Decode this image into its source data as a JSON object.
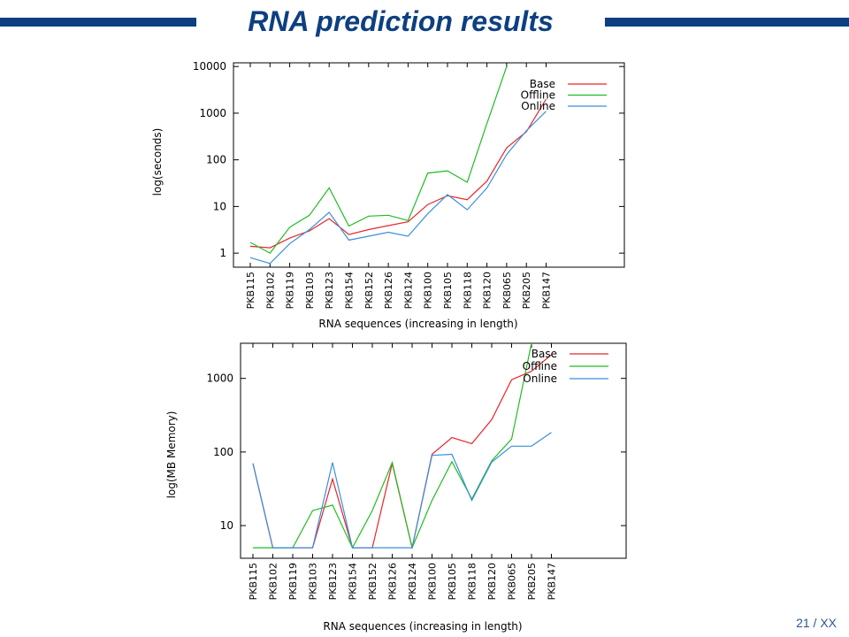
{
  "slide": {
    "title": "RNA prediction results",
    "page_number": "21 / XX",
    "rule_color": "#0d3f82",
    "title_color": "#0d3f82"
  },
  "chart_data": [
    {
      "type": "line",
      "scale": "log",
      "xlabel": "RNA sequences (increasing in length)",
      "ylabel": "log(seconds)",
      "ylim": [
        0.5,
        12000
      ],
      "yticks": [
        1,
        10,
        100,
        1000,
        10000
      ],
      "ytick_labels": [
        "1",
        "10",
        "100",
        "1000",
        "10000"
      ],
      "grid": false,
      "legend_position": "top-right",
      "categories": [
        "PKB115",
        "PKB102",
        "PKB119",
        "PKB103",
        "PKB123",
        "PKB154",
        "PKB152",
        "PKB126",
        "PKB124",
        "PKB100",
        "PKB105",
        "PKB118",
        "PKB120",
        "PKB065",
        "PKB205",
        "PKB147"
      ],
      "series": [
        {
          "name": "Base",
          "color": "#e8262a",
          "values": [
            1.4,
            1.3,
            2.1,
            3.0,
            5.5,
            2.5,
            3.2,
            3.9,
            4.7,
            11,
            17,
            14,
            35,
            180,
            400,
            2000
          ]
        },
        {
          "name": "Offline",
          "color": "#22bb22",
          "values": [
            1.7,
            1.0,
            3.6,
            6.5,
            25,
            3.8,
            6.2,
            6.5,
            5.0,
            52,
            58,
            33,
            600,
            10000,
            null,
            null
          ]
        },
        {
          "name": "Online",
          "color": "#3b8fdc",
          "values": [
            0.8,
            0.6,
            1.6,
            3.2,
            7.5,
            1.9,
            2.3,
            2.8,
            2.3,
            7.0,
            18,
            8.5,
            25,
            130,
            420,
            1100
          ]
        }
      ]
    },
    {
      "type": "line",
      "scale": "log",
      "xlabel": "RNA sequences (increasing in length)",
      "ylabel": "log(MB Memory)",
      "ylim": [
        3.6,
        3000
      ],
      "yticks": [
        10,
        100,
        1000
      ],
      "ytick_labels": [
        "10",
        "100",
        "1000"
      ],
      "grid": false,
      "legend_position": "top-right",
      "categories": [
        "PKB115",
        "PKB102",
        "PKB119",
        "PKB103",
        "PKB123",
        "PKB154",
        "PKB152",
        "PKB126",
        "PKB124",
        "PKB100",
        "PKB105",
        "PKB118",
        "PKB120",
        "PKB065",
        "PKB205",
        "PKB147"
      ],
      "series": [
        {
          "name": "Base",
          "color": "#e8262a",
          "values": [
            70,
            5,
            5,
            5,
            43,
            5,
            5,
            70,
            5,
            93,
            157,
            130,
            275,
            960,
            1250,
            2100
          ]
        },
        {
          "name": "Offline",
          "color": "#22bb22",
          "values": [
            5,
            5,
            5,
            16,
            19,
            5,
            16,
            72,
            5,
            22,
            74,
            23,
            76,
            150,
            3000,
            null
          ]
        },
        {
          "name": "Online",
          "color": "#3b8fdc",
          "values": [
            70,
            5,
            5,
            5,
            72,
            5,
            5,
            5,
            5,
            90,
            93,
            22,
            73,
            120,
            120,
            185
          ]
        }
      ]
    }
  ]
}
